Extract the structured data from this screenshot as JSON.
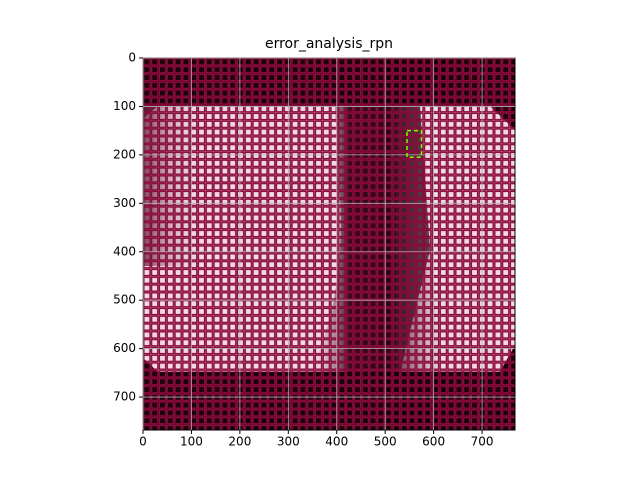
{
  "chart_data": {
    "type": "image",
    "title": "error_analysis_rpn",
    "xlim": [
      0,
      768
    ],
    "ylim": [
      768,
      0
    ],
    "xticks": [
      0,
      100,
      200,
      300,
      400,
      500,
      600,
      700
    ],
    "yticks": [
      0,
      100,
      200,
      300,
      400,
      500,
      600,
      700
    ],
    "grid": true,
    "boxes": [
      {
        "x0": 545,
        "y0": 150,
        "x1": 575,
        "y1": 205,
        "color": "#7cfc00"
      }
    ]
  }
}
